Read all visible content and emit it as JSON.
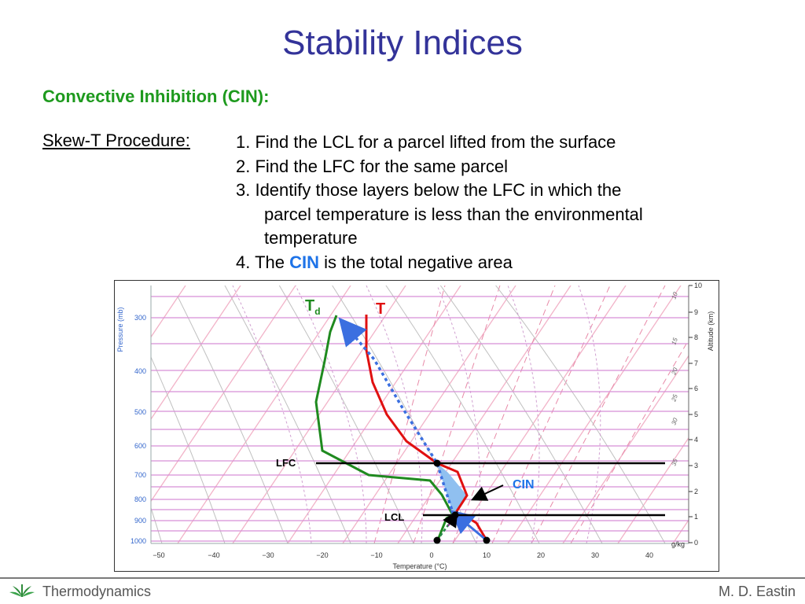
{
  "slide": {
    "title": "Stability Indices",
    "subtitle": "Convective Inhibition (CIN):",
    "procedure_label": "Skew-T Procedure:",
    "steps": [
      "1. Find the LCL for a parcel lifted from the surface",
      "2. Find the LFC for the same parcel",
      "3. Identify those layers below the LFC in which the",
      "parcel temperature is less than the environmental",
      "temperature"
    ],
    "step4_prefix": "4. The ",
    "step4_highlight": "CIN",
    "step4_suffix": " is the total negative area"
  },
  "diagram": {
    "pressure_axis_label": "Pressure (mb)",
    "pressure_ticks": [
      "300",
      "400",
      "500",
      "600",
      "700",
      "800",
      "900",
      "1000"
    ],
    "altitude_axis_label": "Altitude (km)",
    "altitude_ticks": [
      "10",
      "9",
      "8",
      "7",
      "6",
      "5",
      "4",
      "3",
      "2",
      "1",
      "0"
    ],
    "temperature_axis_label": "Temperature (°C)",
    "temperature_ticks": [
      "−50",
      "−40",
      "−30",
      "−20",
      "−10",
      "0",
      "10",
      "20",
      "30",
      "40"
    ],
    "mixing_ratio_unit": "g/kg",
    "mixing_ratio_labels": [
      "10",
      "15",
      "20",
      "25",
      "30",
      "35"
    ],
    "label_td_main": "T",
    "label_td_sub": "d",
    "label_t": "T",
    "label_lfc": "LFC",
    "label_lcl": "LCL",
    "label_cin": "CIN",
    "colors": {
      "temperature": "#e01010",
      "dewpoint": "#1f8a1f",
      "parcel": "#3b6fe0",
      "cin_fill": "#90c0f0",
      "isobar": "#d88fd8",
      "isotherm": "#f2b3c8",
      "dry_adiabat": "#c0c0c0",
      "moist_adiabat": "#d0a0d0",
      "mixing_ratio": "#e88aa8"
    }
  },
  "footer": {
    "left": "Thermodynamics",
    "right": "M. D. Eastin"
  }
}
